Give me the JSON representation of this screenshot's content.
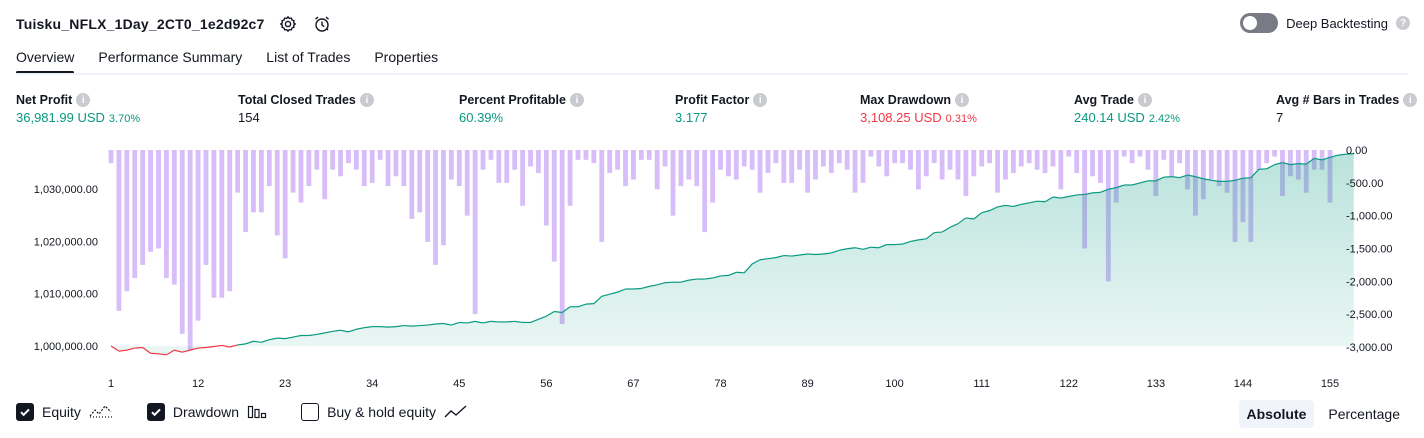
{
  "header": {
    "strategy_name": "Tuisku_NFLX_1Day_2CT0_1e2d92c7",
    "settings_icon": "gear-icon",
    "alert_icon": "alarm-clock-icon",
    "deep_backtesting_label": "Deep Backtesting",
    "deep_backtesting_enabled": false
  },
  "tabs": [
    {
      "label": "Overview",
      "active": true
    },
    {
      "label": "Performance Summary",
      "active": false
    },
    {
      "label": "List of Trades",
      "active": false
    },
    {
      "label": "Properties",
      "active": false
    }
  ],
  "metrics": {
    "net_profit": {
      "label": "Net Profit",
      "value": "36,981.99 USD",
      "pct": "3.70%"
    },
    "total_closed_trades": {
      "label": "Total Closed Trades",
      "value": "154"
    },
    "percent_profitable": {
      "label": "Percent Profitable",
      "value": "60.39%"
    },
    "profit_factor": {
      "label": "Profit Factor",
      "value": "3.177"
    },
    "max_drawdown": {
      "label": "Max Drawdown",
      "value": "3,108.25 USD",
      "pct": "0.31%"
    },
    "avg_trade": {
      "label": "Avg Trade",
      "value": "240.14 USD",
      "pct": "2.42%"
    },
    "avg_bars": {
      "label": "Avg # Bars in Trades",
      "value": "7"
    }
  },
  "chart_data": {
    "type": "area",
    "x_ticks": [
      1,
      12,
      23,
      34,
      45,
      56,
      67,
      78,
      89,
      100,
      111,
      122,
      133,
      144,
      155
    ],
    "x_range": [
      1,
      155
    ],
    "left_axis": {
      "ticks": [
        "1,030,000.00",
        "1,020,000.00",
        "1,010,000.00",
        "1,000,000.00"
      ],
      "tick_values": [
        1030000,
        1020000,
        1010000,
        1000000
      ],
      "range": [
        999800,
        1037500
      ]
    },
    "right_axis": {
      "ticks": [
        "0.00",
        "-500.00",
        "-1,000.00",
        "-1,500.00",
        "-2,000.00",
        "-2,500.00",
        "-3,000.00"
      ],
      "tick_values": [
        0,
        -500,
        -1000,
        -1500,
        -2000,
        -2500,
        -3000
      ],
      "range": [
        -3000,
        0
      ]
    },
    "series": [
      {
        "name": "Equity",
        "color_up": "#089981",
        "color_down": "#f23645",
        "values": [
          1000000,
          999000,
          999200,
          999600,
          999700,
          998600,
          998500,
          998300,
          999200,
          998800,
          999200,
          999600,
          999700,
          999900,
          1000100,
          999800,
          1000200,
          1000400,
          1000900,
          1000700,
          1001200,
          1001500,
          1001400,
          1001700,
          1002000,
          1002000,
          1002200,
          1002500,
          1002800,
          1003000,
          1002700,
          1003200,
          1003500,
          1003700,
          1003700,
          1003600,
          1003700,
          1003900,
          1003800,
          1003900,
          1004000,
          1004200,
          1004300,
          1004000,
          1004500,
          1004400,
          1004700,
          1004400,
          1004700,
          1004600,
          1004600,
          1004700,
          1004500,
          1004500,
          1005100,
          1005700,
          1006600,
          1006400,
          1007500,
          1007500,
          1008000,
          1008100,
          1009500,
          1009900,
          1010300,
          1010900,
          1010900,
          1011000,
          1011400,
          1011700,
          1012100,
          1012200,
          1012200,
          1012600,
          1012800,
          1012800,
          1013000,
          1013400,
          1013500,
          1014100,
          1014000,
          1015700,
          1016500,
          1016700,
          1016900,
          1017300,
          1017200,
          1017400,
          1017600,
          1017500,
          1017600,
          1017800,
          1018300,
          1018600,
          1018800,
          1018500,
          1018900,
          1018800,
          1019400,
          1019400,
          1019500,
          1020000,
          1020300,
          1020500,
          1021700,
          1021800,
          1022700,
          1023400,
          1024500,
          1024300,
          1025500,
          1025900,
          1026600,
          1026900,
          1026700,
          1027100,
          1027400,
          1027700,
          1027600,
          1028500,
          1028300,
          1028600,
          1028900,
          1029000,
          1029300,
          1029400,
          1030000,
          1030300,
          1030800,
          1030800,
          1031200,
          1031600,
          1031600,
          1032300,
          1032400,
          1032200,
          1032700,
          1032400,
          1032000,
          1031700,
          1031500,
          1031500,
          1031700,
          1032100,
          1032200,
          1033800,
          1033900,
          1034700,
          1035100,
          1034700,
          1034900,
          1034800,
          1035900,
          1035600,
          1036100,
          1036500,
          1036700,
          1036800
        ]
      },
      {
        "name": "Drawdown",
        "color": "#d1b3f7",
        "values": [
          -200,
          -2450,
          -2150,
          -1950,
          -1750,
          -1550,
          -1500,
          -1950,
          -2050,
          -2800,
          -3050,
          -2600,
          -1750,
          -2250,
          -2250,
          -2150,
          -650,
          -1250,
          -950,
          -950,
          -550,
          -1300,
          -1650,
          -650,
          -800,
          -550,
          -300,
          -750,
          -300,
          -400,
          -200,
          -300,
          -550,
          -500,
          -150,
          -550,
          -400,
          -550,
          -1050,
          -950,
          -1400,
          -1750,
          -1450,
          -450,
          -550,
          -1000,
          -2500,
          -300,
          -150,
          -500,
          -500,
          -300,
          -850,
          -250,
          -350,
          -1150,
          -1700,
          -2650,
          -850,
          -150,
          -150,
          -200,
          -1400,
          -350,
          -300,
          -550,
          -450,
          -150,
          -150,
          -600,
          -250,
          -1000,
          -550,
          -450,
          -550,
          -1250,
          -800,
          -300,
          -400,
          -450,
          -250,
          -300,
          -650,
          -350,
          -200,
          -500,
          -500,
          -300,
          -650,
          -450,
          -250,
          -350,
          -200,
          -300,
          -650,
          -500,
          -100,
          -250,
          -400,
          -200,
          -200,
          -300,
          -600,
          -400,
          -200,
          -450,
          -300,
          -450,
          -700,
          -400,
          -250,
          -200,
          -650,
          -450,
          -350,
          -250,
          -200,
          -300,
          -350,
          -250,
          -600,
          -100,
          -350,
          -1500,
          -400,
          -500,
          -2000,
          -800,
          -100,
          -200,
          -100,
          -300,
          -700,
          -150,
          -400,
          -200,
          -600,
          -1000,
          -750,
          -450,
          -550,
          -650,
          -1400,
          -1100,
          -1400,
          -300,
          -200,
          -100,
          -700,
          -400,
          -450,
          -650,
          -300,
          -300,
          -800
        ]
      }
    ]
  },
  "legend": [
    {
      "label": "Equity",
      "checked": true,
      "icon": "equity-line-icon"
    },
    {
      "label": "Drawdown",
      "checked": true,
      "icon": "drawdown-bars-icon"
    },
    {
      "label": "Buy & hold equity",
      "checked": false,
      "icon": "buy-hold-line-icon"
    }
  ],
  "mode": {
    "absolute_label": "Absolute",
    "percentage_label": "Percentage",
    "active": "absolute"
  }
}
